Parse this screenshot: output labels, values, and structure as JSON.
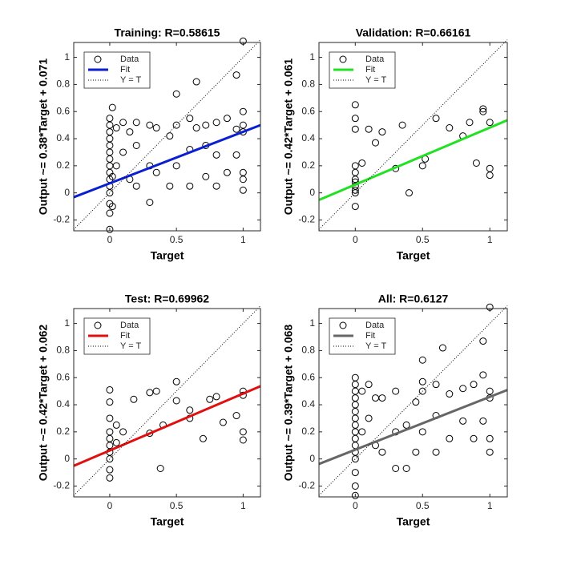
{
  "chart_data": [
    {
      "type": "scatter",
      "title": "Training: R=0.58615",
      "xlabel": "Target",
      "ylabel": "Output ~= 0.38*Target + 0.071",
      "xlim": [
        -0.27,
        1.13
      ],
      "ylim": [
        -0.28,
        1.11
      ],
      "xticks": [
        0,
        0.5,
        1
      ],
      "yticks": [
        -0.2,
        0,
        0.2,
        0.4,
        0.6,
        0.8,
        1
      ],
      "legend": "upper left",
      "series": [
        {
          "name": "Data",
          "color": "#000000",
          "marker": "circle",
          "x": [
            0,
            0,
            0,
            0,
            0,
            0,
            0,
            0,
            0,
            0,
            0,
            0,
            0,
            0,
            0,
            0.02,
            0.02,
            0.02,
            0.05,
            0.05,
            0.1,
            0.1,
            0.15,
            0.15,
            0.2,
            0.2,
            0.2,
            0.3,
            0.3,
            0.3,
            0.35,
            0.35,
            0.45,
            0.45,
            0.5,
            0.5,
            0.5,
            0.6,
            0.6,
            0.6,
            0.65,
            0.65,
            0.72,
            0.72,
            0.72,
            0.8,
            0.8,
            0.8,
            0.88,
            0.88,
            0.95,
            0.95,
            0.95,
            1,
            1,
            1,
            1,
            1,
            1,
            1
          ],
          "values": [
            -0.27,
            -0.15,
            -0.08,
            0,
            0.05,
            0.1,
            0.15,
            0.2,
            0.25,
            0.3,
            0.35,
            0.4,
            0.45,
            0.5,
            0.55,
            0.63,
            0.12,
            -0.1,
            0.48,
            0.2,
            0.3,
            0.52,
            0.1,
            0.45,
            0.05,
            0.35,
            0.52,
            -0.07,
            0.5,
            0.2,
            0.15,
            0.48,
            0.42,
            0.05,
            0.5,
            0.2,
            0.73,
            0.32,
            0.05,
            0.55,
            0.82,
            0.48,
            0.12,
            0.5,
            0.35,
            0.52,
            0.28,
            0.05,
            0.55,
            0.15,
            0.47,
            0.87,
            0.28,
            0.5,
            0.15,
            0.1,
            1.12,
            0.6,
            0.45,
            0.02
          ]
        },
        {
          "name": "Fit",
          "color": "#0a1ed2",
          "x": [
            -0.27,
            1.13
          ],
          "values": [
            -0.032,
            0.5
          ]
        },
        {
          "name": "Y = T",
          "color": "#000000",
          "linestyle": "dotted",
          "x": [
            -0.27,
            1.13
          ],
          "values": [
            -0.27,
            1.13
          ]
        }
      ]
    },
    {
      "type": "scatter",
      "title": "Validation: R=0.66161",
      "xlabel": "Target",
      "ylabel": "Output ~= 0.42*Target + 0.061",
      "xlim": [
        -0.27,
        1.13
      ],
      "ylim": [
        -0.28,
        1.11
      ],
      "xticks": [
        0,
        0.5,
        1
      ],
      "yticks": [
        -0.2,
        0,
        0.2,
        0.4,
        0.6,
        0.8,
        1
      ],
      "legend": "upper left",
      "series": [
        {
          "name": "Data",
          "color": "#000000",
          "marker": "circle",
          "x": [
            0,
            0,
            0,
            0,
            0,
            0,
            0,
            0,
            0,
            0,
            0,
            0.05,
            0.1,
            0.15,
            0.2,
            0.3,
            0.35,
            0.4,
            0.5,
            0.52,
            0.6,
            0.7,
            0.8,
            0.85,
            0.9,
            0.95,
            0.95,
            1,
            1,
            1
          ],
          "values": [
            -0.1,
            0,
            0.05,
            0.1,
            0.15,
            0.2,
            0.02,
            0.08,
            0.65,
            0.55,
            0.47,
            0.22,
            0.47,
            0.37,
            0.45,
            0.18,
            0.5,
            0,
            0.2,
            0.25,
            0.55,
            0.48,
            0.42,
            0.52,
            0.22,
            0.62,
            0.6,
            0.52,
            0.18,
            0.13
          ]
        },
        {
          "name": "Fit",
          "color": "#22e022",
          "x": [
            -0.27,
            1.13
          ],
          "values": [
            -0.052,
            0.536
          ]
        },
        {
          "name": "Y = T",
          "color": "#000000",
          "linestyle": "dotted",
          "x": [
            -0.27,
            1.13
          ],
          "values": [
            -0.27,
            1.13
          ]
        }
      ]
    },
    {
      "type": "scatter",
      "title": "Test: R=0.69962",
      "xlabel": "Target",
      "ylabel": "Output ~= 0.42*Target + 0.062",
      "xlim": [
        -0.27,
        1.13
      ],
      "ylim": [
        -0.28,
        1.11
      ],
      "xticks": [
        0,
        0.5,
        1
      ],
      "yticks": [
        -0.2,
        0,
        0.2,
        0.4,
        0.6,
        0.8,
        1
      ],
      "legend": "upper left",
      "series": [
        {
          "name": "Data",
          "color": "#000000",
          "marker": "circle",
          "x": [
            0,
            0,
            0,
            0,
            0,
            0,
            0,
            0,
            0,
            0,
            0.05,
            0.05,
            0.1,
            0.18,
            0.3,
            0.3,
            0.35,
            0.38,
            0.4,
            0.5,
            0.5,
            0.6,
            0.6,
            0.7,
            0.75,
            0.8,
            0.85,
            0.95,
            1,
            1,
            1,
            1
          ],
          "values": [
            -0.14,
            -0.08,
            0,
            0.05,
            0.1,
            0.15,
            0.2,
            0.3,
            0.42,
            0.51,
            0.25,
            0.12,
            0.2,
            0.44,
            0.19,
            0.49,
            0.5,
            -0.07,
            0.25,
            0.43,
            0.57,
            0.36,
            0.3,
            0.15,
            0.44,
            0.46,
            0.27,
            0.32,
            0.5,
            0.47,
            0.2,
            0.14
          ]
        },
        {
          "name": "Fit",
          "color": "#e01010",
          "x": [
            -0.27,
            1.13
          ],
          "values": [
            -0.051,
            0.537
          ]
        },
        {
          "name": "Y = T",
          "color": "#000000",
          "linestyle": "dotted",
          "x": [
            -0.27,
            1.13
          ],
          "values": [
            -0.27,
            1.13
          ]
        }
      ]
    },
    {
      "type": "scatter",
      "title": "All: R=0.6127",
      "xlabel": "Target",
      "ylabel": "Output ~= 0.39*Target + 0.068",
      "xlim": [
        -0.27,
        1.13
      ],
      "ylim": [
        -0.28,
        1.11
      ],
      "xticks": [
        0,
        0.5,
        1
      ],
      "yticks": [
        -0.2,
        0,
        0.2,
        0.4,
        0.6,
        0.8,
        1
      ],
      "legend": "upper left",
      "series": [
        {
          "name": "Data",
          "color": "#000000",
          "marker": "circle",
          "x": [
            0,
            0,
            0,
            0,
            0,
            0,
            0,
            0,
            0,
            0,
            0,
            0,
            0,
            0,
            0,
            0,
            0.05,
            0.05,
            0.1,
            0.1,
            0.15,
            0.15,
            0.2,
            0.2,
            0.3,
            0.3,
            0.3,
            0.38,
            0.38,
            0.45,
            0.45,
            0.5,
            0.5,
            0.5,
            0.5,
            0.6,
            0.6,
            0.6,
            0.65,
            0.7,
            0.7,
            0.8,
            0.8,
            0.88,
            0.88,
            0.95,
            0.95,
            0.95,
            1,
            1,
            1,
            1,
            1
          ],
          "values": [
            -0.27,
            -0.2,
            -0.1,
            0,
            0.05,
            0.1,
            0.15,
            0.2,
            0.25,
            0.3,
            0.35,
            0.4,
            0.45,
            0.5,
            0.55,
            0.6,
            0.5,
            0.2,
            0.3,
            0.55,
            0.1,
            0.45,
            0.05,
            0.45,
            -0.07,
            0.5,
            0.2,
            -0.07,
            0.25,
            0.42,
            0.05,
            0.5,
            0.2,
            0.73,
            0.57,
            0.32,
            0.55,
            0.05,
            0.82,
            0.15,
            0.48,
            0.52,
            0.28,
            0.55,
            0.15,
            0.62,
            0.87,
            0.28,
            0.5,
            0.15,
            1.12,
            0.45,
            0.05
          ]
        },
        {
          "name": "Fit",
          "color": "#666666",
          "x": [
            -0.27,
            1.13
          ],
          "values": [
            -0.037,
            0.509
          ]
        },
        {
          "name": "Y = T",
          "color": "#000000",
          "linestyle": "dotted",
          "x": [
            -0.27,
            1.13
          ],
          "values": [
            -0.27,
            1.13
          ]
        }
      ]
    }
  ]
}
